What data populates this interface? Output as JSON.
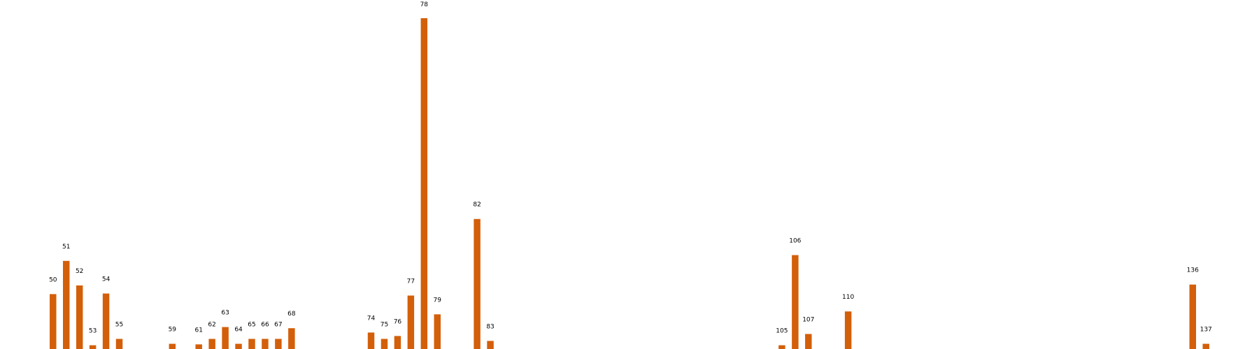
{
  "chart_data": {
    "type": "bar",
    "title": "",
    "xlabel": "",
    "ylabel": "",
    "grid": false,
    "legend": "none",
    "bar_color": "#d35f0a",
    "xlim": [
      46,
      141
    ],
    "ylim": [
      0,
      115
    ],
    "bars": [
      {
        "label": "50",
        "x": 50,
        "value": 19
      },
      {
        "label": "51",
        "x": 51,
        "value": 30.5
      },
      {
        "label": "52",
        "x": 52,
        "value": 22
      },
      {
        "label": "53",
        "x": 53,
        "value": 1.3
      },
      {
        "label": "54",
        "x": 54,
        "value": 19.2
      },
      {
        "label": "55",
        "x": 55,
        "value": 3.5
      },
      {
        "label": "59",
        "x": 59,
        "value": 1.8
      },
      {
        "label": "61",
        "x": 61,
        "value": 1.6
      },
      {
        "label": "62",
        "x": 62,
        "value": 3.5
      },
      {
        "label": "63",
        "x": 63,
        "value": 7.6
      },
      {
        "label": "64",
        "x": 64,
        "value": 1.8
      },
      {
        "label": "65",
        "x": 65,
        "value": 3.5
      },
      {
        "label": "66",
        "x": 66,
        "value": 3.5
      },
      {
        "label": "67",
        "x": 67,
        "value": 3.5
      },
      {
        "label": "68",
        "x": 68,
        "value": 7.2
      },
      {
        "label": "74",
        "x": 74,
        "value": 5.7
      },
      {
        "label": "75",
        "x": 75,
        "value": 3.5
      },
      {
        "label": "76",
        "x": 76,
        "value": 4.5
      },
      {
        "label": "77",
        "x": 77,
        "value": 18.5
      },
      {
        "label": "78",
        "x": 78,
        "value": 114.5
      },
      {
        "label": "79",
        "x": 79,
        "value": 12
      },
      {
        "label": "82",
        "x": 82,
        "value": 45
      },
      {
        "label": "83",
        "x": 83,
        "value": 2.8
      },
      {
        "label": "105",
        "x": 105,
        "value": 1.3
      },
      {
        "label": "106",
        "x": 106,
        "value": 32.5
      },
      {
        "label": "107",
        "x": 107,
        "value": 5.2
      },
      {
        "label": "110",
        "x": 110,
        "value": 13
      },
      {
        "label": "136",
        "x": 136,
        "value": 22.3
      },
      {
        "label": "137",
        "x": 137,
        "value": 1.8
      }
    ]
  }
}
